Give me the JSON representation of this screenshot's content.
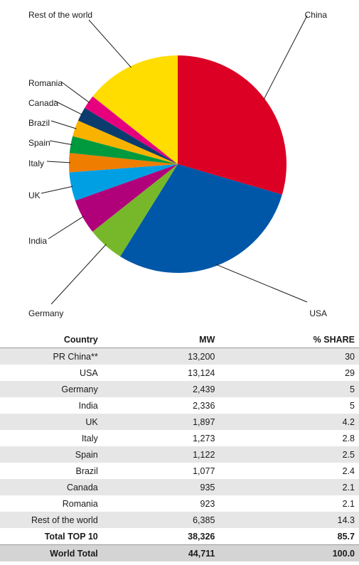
{
  "chart_data": {
    "type": "pie",
    "title": "",
    "slices": [
      {
        "label": "China",
        "value": 13200,
        "color": "#dc0024"
      },
      {
        "label": "USA",
        "value": 13124,
        "color": "#0057a8"
      },
      {
        "label": "Germany",
        "value": 2439,
        "color": "#76b82a"
      },
      {
        "label": "India",
        "value": 2336,
        "color": "#b0007a"
      },
      {
        "label": "UK",
        "value": 1897,
        "color": "#009fe3"
      },
      {
        "label": "Italy",
        "value": 1273,
        "color": "#ef7d00"
      },
      {
        "label": "Spain",
        "value": 1122,
        "color": "#009a3e"
      },
      {
        "label": "Brazil",
        "value": 1077,
        "color": "#f9b200"
      },
      {
        "label": "Canada",
        "value": 935,
        "color": "#0a3d6e"
      },
      {
        "label": "Romania",
        "value": 923,
        "color": "#e6007e"
      },
      {
        "label": "Rest of the world",
        "value": 6385,
        "color": "#ffdd00"
      }
    ],
    "legend": "callout labels"
  },
  "table": {
    "headers": {
      "country": "Country",
      "mw": "MW",
      "share": "% SHARE"
    },
    "rows": [
      {
        "country": "PR China**",
        "mw": "13,200",
        "share": "30"
      },
      {
        "country": "USA",
        "mw": "13,124",
        "share": "29"
      },
      {
        "country": "Germany",
        "mw": "2,439",
        "share": "5"
      },
      {
        "country": "India",
        "mw": "2,336",
        "share": "5"
      },
      {
        "country": "UK",
        "mw": "1,897",
        "share": "4.2"
      },
      {
        "country": "Italy",
        "mw": "1,273",
        "share": "2.8"
      },
      {
        "country": "Spain",
        "mw": "1,122",
        "share": "2.5"
      },
      {
        "country": "Brazil",
        "mw": "1,077",
        "share": "2.4"
      },
      {
        "country": "Canada",
        "mw": "935",
        "share": "2.1"
      },
      {
        "country": "Romania",
        "mw": "923",
        "share": "2.1"
      },
      {
        "country": "Rest of the world",
        "mw": "6,385",
        "share": "14.3"
      }
    ],
    "total_top10": {
      "country": "Total TOP 10",
      "mw": "38,326",
      "share": "85.7"
    },
    "world_total": {
      "country": "World Total",
      "mw": "44,711",
      "share": "100.0"
    }
  }
}
